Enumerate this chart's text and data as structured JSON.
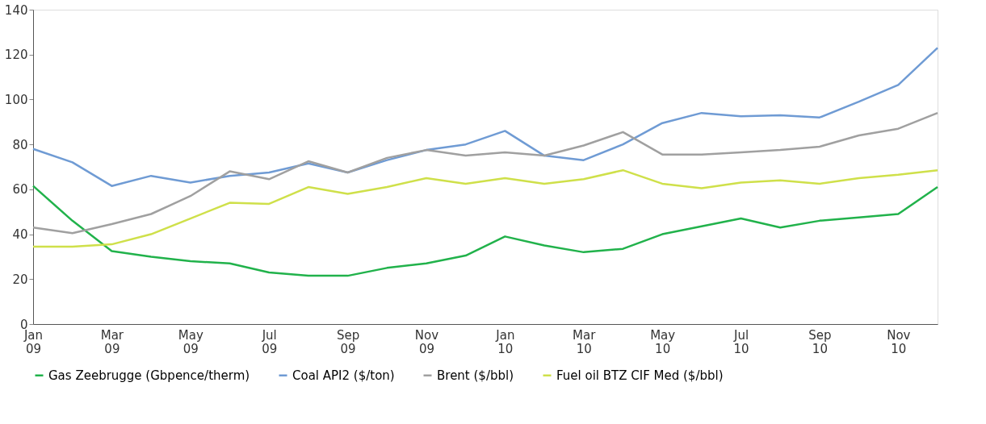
{
  "chart_data": {
    "type": "line",
    "categories": [
      "Jan 09",
      null,
      "Mar 09",
      null,
      "May 09",
      null,
      "Jul 09",
      null,
      "Sep 09",
      null,
      "Nov 09",
      null,
      "Jan 10",
      null,
      "Mar 10",
      null,
      "May 10",
      null,
      "Jul 10",
      null,
      "Sep 10",
      null,
      "Nov 10",
      null
    ],
    "series": [
      {
        "name": "Gas Zeebrugge (Gbpence/therm)",
        "color": "#21b24b",
        "values": [
          61.5,
          46,
          32.5,
          30,
          28,
          27,
          23,
          21.5,
          21.5,
          25,
          27,
          30.5,
          39,
          35,
          32,
          33.5,
          40,
          43.5,
          47,
          43,
          46,
          47.5,
          49,
          61
        ]
      },
      {
        "name": "Coal API2 ($/ton)",
        "color": "#6f9bd4",
        "values": [
          78,
          72,
          61.5,
          66,
          63,
          66,
          67.5,
          71.5,
          67.5,
          73,
          77.5,
          80,
          86,
          75,
          73,
          80,
          89.5,
          94,
          92.5,
          93,
          92,
          99,
          106.5,
          123
        ]
      },
      {
        "name": "Brent ($/bbl)",
        "color": "#a0a0a0",
        "values": [
          43,
          40.5,
          44.5,
          49,
          57,
          68,
          64.5,
          72.5,
          67.5,
          74,
          77.5,
          75,
          76.5,
          75,
          79.5,
          85.5,
          75.5,
          75.5,
          76.5,
          77.5,
          79,
          84,
          87,
          94
        ]
      },
      {
        "name": "Fuel oil BTZ CIF Med ($/bbl)",
        "color": "#cfe04a",
        "values": [
          34.5,
          34.5,
          35.5,
          40,
          47,
          54,
          53.5,
          61,
          58,
          61,
          65,
          62.5,
          65,
          62.5,
          64.5,
          68.5,
          62.5,
          60.5,
          63,
          64,
          62.5,
          65,
          66.5,
          68.5
        ]
      }
    ],
    "ylim": [
      0,
      140
    ],
    "yticks": [
      0,
      20,
      40,
      60,
      80,
      100,
      120,
      140
    ],
    "grid": false,
    "legend": "bottom",
    "marker": "none",
    "line_style": "solid"
  }
}
